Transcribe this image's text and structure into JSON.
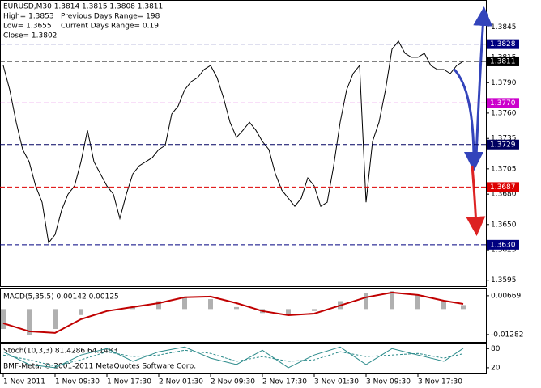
{
  "chart_data": [
    {
      "type": "line",
      "title": "EURUSD,M30  1.3814 1.3815 1.3808 1.3811",
      "info": [
        "High= 1.3853",
        "Previous Days Range= 198",
        "Low= 1.3655",
        "Current Days Range= 0.19",
        "Close= 1.3802"
      ],
      "categories": [
        "1 Nov 2011",
        null,
        null,
        null,
        null,
        null,
        null,
        null,
        "1 Nov 09:30",
        null,
        null,
        null,
        null,
        null,
        null,
        null,
        "1 Nov 17:30",
        null,
        null,
        null,
        null,
        null,
        null,
        null,
        "2 Nov 01:30",
        null,
        null,
        null,
        null,
        null,
        null,
        null,
        "2 Nov 09:30",
        null,
        null,
        null,
        null,
        null,
        null,
        null,
        "2 Nov 17:30",
        null,
        null,
        null,
        null,
        null,
        null,
        null,
        "3 Nov 01:30",
        null,
        null,
        null,
        null,
        null,
        null,
        null,
        "3 Nov 09:30",
        null,
        null,
        null,
        null,
        null,
        null,
        null,
        "3 Nov 17:30",
        null,
        null,
        null,
        null,
        null,
        null,
        null
      ],
      "values": [
        1.3807,
        1.3783,
        1.3751,
        1.3724,
        1.3712,
        1.3688,
        1.3672,
        1.3632,
        1.364,
        1.3664,
        1.368,
        1.3688,
        1.3712,
        1.3743,
        1.3712,
        1.37,
        1.3688,
        1.368,
        1.3656,
        1.368,
        1.37,
        1.3708,
        1.3712,
        1.3716,
        1.3724,
        1.3728,
        1.3759,
        1.3767,
        1.3783,
        1.3791,
        1.3795,
        1.3803,
        1.3807,
        1.3795,
        1.3775,
        1.3751,
        1.3736,
        1.3743,
        1.3751,
        1.3743,
        1.3732,
        1.3724,
        1.37,
        1.3684,
        1.3676,
        1.3668,
        1.3676,
        1.3696,
        1.3688,
        1.3668,
        1.3672,
        1.3708,
        1.3751,
        1.3783,
        1.3799,
        1.3807,
        1.3672,
        1.3732,
        1.3751,
        1.3783,
        1.3823,
        1.3831,
        1.3819,
        1.3815,
        1.3815,
        1.3819,
        1.3807,
        1.3803,
        1.3803,
        1.3799,
        1.3807,
        1.3811
      ],
      "color": "#000000",
      "ylim": [
        1.359,
        1.387
      ],
      "yticks": [
        {
          "value": 1.3845,
          "label": "1.3845"
        },
        {
          "value": 1.3815,
          "label": "1.3815"
        },
        {
          "value": 1.379,
          "label": "1.3790"
        },
        {
          "value": 1.376,
          "label": "1.3760"
        },
        {
          "value": 1.3735,
          "label": "1.3735"
        },
        {
          "value": 1.3705,
          "label": "1.3705"
        },
        {
          "value": 1.368,
          "label": "1.3680"
        },
        {
          "value": 1.365,
          "label": "1.3650"
        },
        {
          "value": 1.3625,
          "label": "1.3625"
        },
        {
          "value": 1.3595,
          "label": "1.3595"
        }
      ],
      "levels": [
        {
          "value": 1.3828,
          "label": "1.3828",
          "color": "#000080"
        },
        {
          "value": 1.3811,
          "label": "1.3811",
          "color": "#000000"
        },
        {
          "value": 1.377,
          "label": "1.3770",
          "color": "#cc00cc"
        },
        {
          "value": 1.3729,
          "label": "1.3729",
          "color": "#000060"
        },
        {
          "value": 1.3687,
          "label": "1.3687",
          "color": "#dd0000"
        },
        {
          "value": 1.363,
          "label": "1.3630",
          "color": "#000080"
        }
      ]
    },
    {
      "type": "combo",
      "title": "MACD(5,35,5) 0.00142 0.00125",
      "x": [
        0,
        4,
        8,
        12,
        16,
        20,
        24,
        28,
        32,
        36,
        40,
        44,
        48,
        52,
        56,
        60,
        64,
        68,
        71
      ],
      "series": [
        {
          "kind": "bar",
          "color": "#b0b0b0",
          "values": [
            -0.01,
            -0.013,
            -0.01,
            -0.003,
            0.0,
            0.001,
            0.004,
            0.006,
            0.005,
            0.001,
            -0.002,
            -0.003,
            -0.001,
            0.004,
            0.008,
            0.009,
            0.007,
            0.004,
            0.002
          ]
        },
        {
          "kind": "line",
          "color": "#c00000",
          "values": [
            -0.00713,
            -0.0112,
            -0.012,
            -0.0051,
            -0.001,
            0.001,
            0.003,
            0.0059,
            0.0063,
            0.003,
            -0.001,
            -0.0031,
            -0.0023,
            0.0018,
            0.0059,
            0.0083,
            0.0071,
            0.0042,
            0.0026
          ]
        }
      ],
      "ylim": [
        -0.0165,
        0.0103
      ],
      "yticks": [
        {
          "value": 0.00669,
          "label": "0.00669"
        },
        {
          "value": -0.01282,
          "label": "-0.01282"
        }
      ]
    },
    {
      "type": "line",
      "title": "Stoch(10,3,3) 81.4286 64.1483",
      "x": [
        0,
        4,
        8,
        12,
        16,
        20,
        24,
        28,
        32,
        36,
        40,
        44,
        48,
        52,
        56,
        60,
        64,
        68,
        71
      ],
      "series": [
        {
          "color": "#2a8a8a",
          "dashed": false,
          "values": [
            70,
            30,
            20,
            60,
            80,
            40,
            70,
            85,
            50,
            30,
            75,
            20,
            60,
            85,
            30,
            80,
            60,
            40,
            81
          ]
        },
        {
          "color": "#2a8a8a",
          "dashed": true,
          "values": [
            60,
            45,
            25,
            45,
            70,
            55,
            60,
            75,
            65,
            40,
            55,
            40,
            45,
            70,
            55,
            60,
            65,
            50,
            64
          ]
        }
      ],
      "ylim": [
        2,
        96
      ],
      "yticks": [
        80,
        20
      ]
    }
  ],
  "copyright": "BMF-Meta, © 2001-2011 MetaQuotes Software Corp."
}
